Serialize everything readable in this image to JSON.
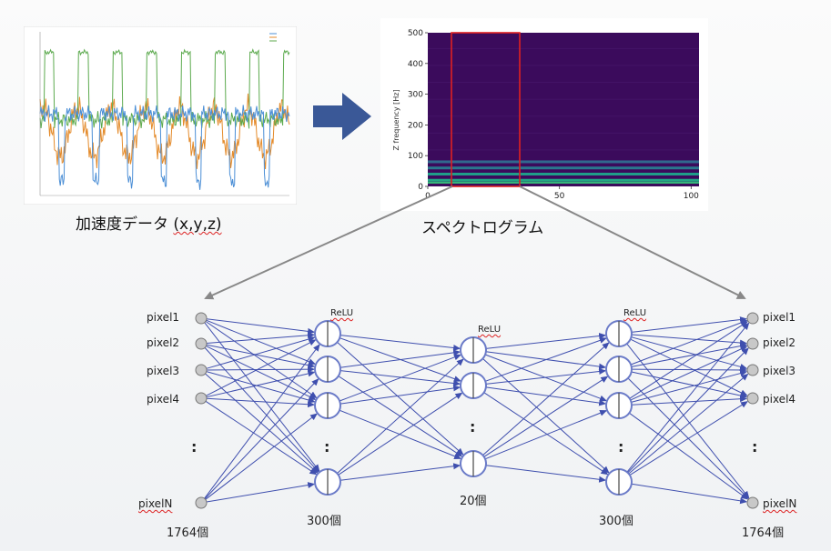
{
  "captions": {
    "accel_main": "加速度データ",
    "accel_axes": "(x,y,z)",
    "spectrogram": "スペクトログラム"
  },
  "colors": {
    "arrow": "#3a5897",
    "network": "#3f4fae",
    "highlight": "#e02020",
    "spectrogram_bg": "#3b0b5c",
    "series_x": "#4c8fd6",
    "series_y": "#e48b2b",
    "series_z": "#5caa4e"
  },
  "spectrogram": {
    "ylabel": "Z frequency [Hz]",
    "yticks": [
      "0",
      "100",
      "200",
      "300",
      "400",
      "500"
    ],
    "xticks": [
      "0",
      "50",
      "100"
    ],
    "ylim": [
      0,
      500
    ],
    "xlim": [
      0,
      103
    ],
    "highlight_range": [
      11,
      43
    ]
  },
  "network": {
    "input_labels": [
      "pixel1",
      "pixel2",
      "pixel3",
      "pixel4",
      "pixelN"
    ],
    "output_labels": [
      "pixel1",
      "pixel2",
      "pixel3",
      "pixel4",
      "pixelN"
    ],
    "activation": "ReLU",
    "ellipsis": ":",
    "layer_counts": [
      "1764個",
      "300個",
      "20個",
      "300個",
      "1764個"
    ]
  },
  "chart_data": [
    {
      "type": "line",
      "title": "",
      "xlim": [
        0,
        200
      ],
      "ylim": [
        -250,
        550
      ],
      "series": [
        {
          "pattern": "sharp negative dips once per cycle",
          "color": "#4c8fd6"
        },
        {
          "pattern": "oscillating mid-amplitude",
          "color": "#e48b2b"
        },
        {
          "pattern": "flat-top positive pulses once per cycle",
          "color": "#5caa4e"
        }
      ]
    },
    {
      "type": "heatmap",
      "ylabel": "Z frequency [Hz]",
      "xlim": [
        0,
        103
      ],
      "ylim": [
        0,
        500
      ],
      "bright_bands_hz": [
        20,
        40,
        60,
        80
      ]
    }
  ]
}
